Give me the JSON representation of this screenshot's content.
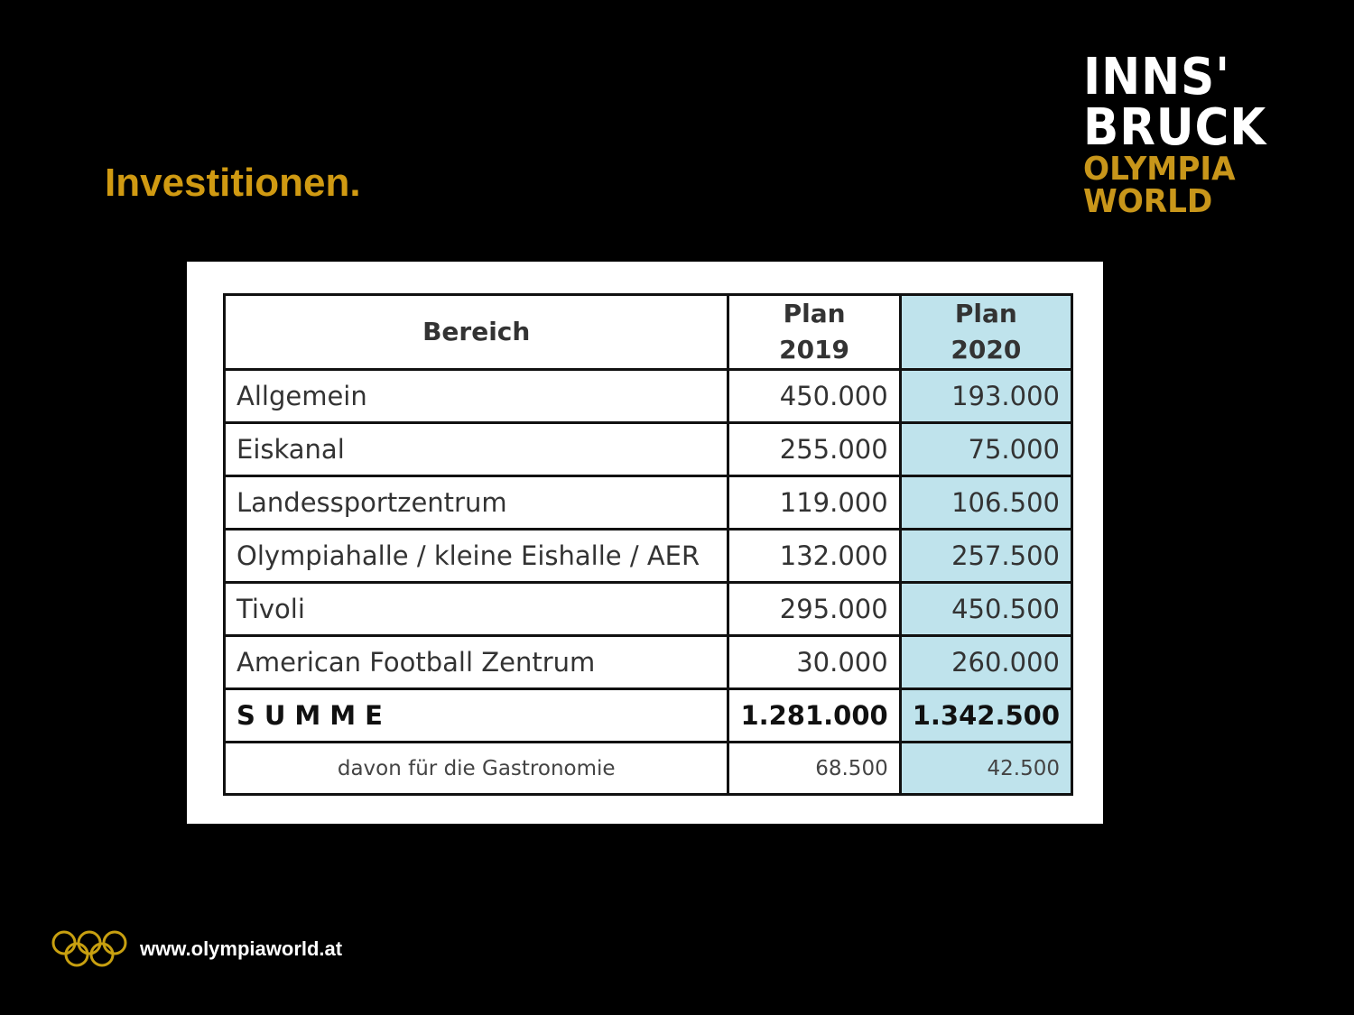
{
  "title": "Investitionen.",
  "logo": {
    "line1": "INNS'",
    "line2": "BRUCK",
    "line3": "OLYMPIA",
    "line4": "WORLD"
  },
  "table": {
    "headers": [
      "Bereich",
      "Plan 2019",
      "Plan 2020"
    ],
    "rows": [
      {
        "name": "Allgemein",
        "y2019": "450.000",
        "y2020": "193.000"
      },
      {
        "name": "Eiskanal",
        "y2019": "255.000",
        "y2020": "75.000"
      },
      {
        "name": "Landessportzentrum",
        "y2019": "119.000",
        "y2020": "106.500"
      },
      {
        "name": "Olympiahalle / kleine Eishalle / AER",
        "y2019": "132.000",
        "y2020": "257.500"
      },
      {
        "name": "Tivoli",
        "y2019": "295.000",
        "y2020": "450.500"
      },
      {
        "name": "American Football Zentrum",
        "y2019": "30.000",
        "y2020": "260.000"
      }
    ],
    "sum": {
      "name": "SUMME",
      "y2019": "1.281.000",
      "y2020": "1.342.500"
    },
    "sub": {
      "name": "davon für die Gastronomie",
      "y2019": "68.500",
      "y2020": "42.500"
    }
  },
  "footer": {
    "url": "www.olympiaworld.at"
  },
  "colors": {
    "title": "#d09a12",
    "highlight": "#bfe3ec"
  }
}
